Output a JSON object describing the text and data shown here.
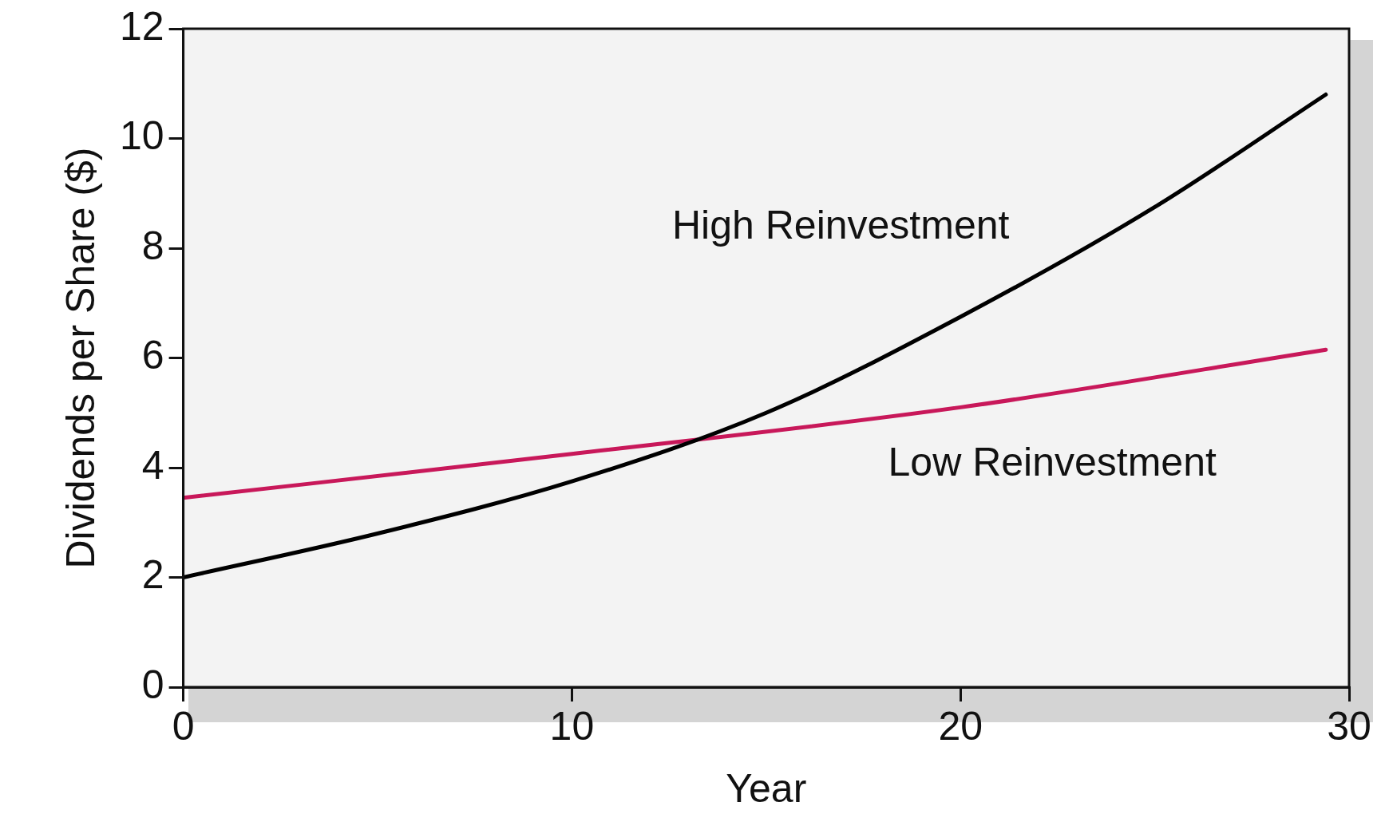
{
  "chart_data": {
    "type": "line",
    "xlabel": "Year",
    "ylabel": "Dividends per Share ($)",
    "xlim": [
      0,
      30
    ],
    "xticks": [
      0,
      10,
      20,
      30
    ],
    "ylim": [
      0,
      12
    ],
    "yticks": [
      0,
      2,
      4,
      6,
      8,
      10,
      12
    ],
    "grid": false,
    "legend": false,
    "marker": "none",
    "line_style": "solid",
    "series": [
      {
        "name": "High Reinvestment",
        "color": "#000000",
        "x": [
          0,
          5,
          10,
          15,
          20,
          25,
          29.4
        ],
        "values": [
          2.0,
          2.8,
          3.75,
          5.0,
          6.75,
          8.75,
          10.8
        ]
      },
      {
        "name": "Low Reinvestment",
        "color": "#c8185a",
        "x": [
          0,
          10,
          20,
          29.4
        ],
        "values": [
          3.45,
          4.25,
          5.1,
          6.15
        ]
      }
    ]
  }
}
